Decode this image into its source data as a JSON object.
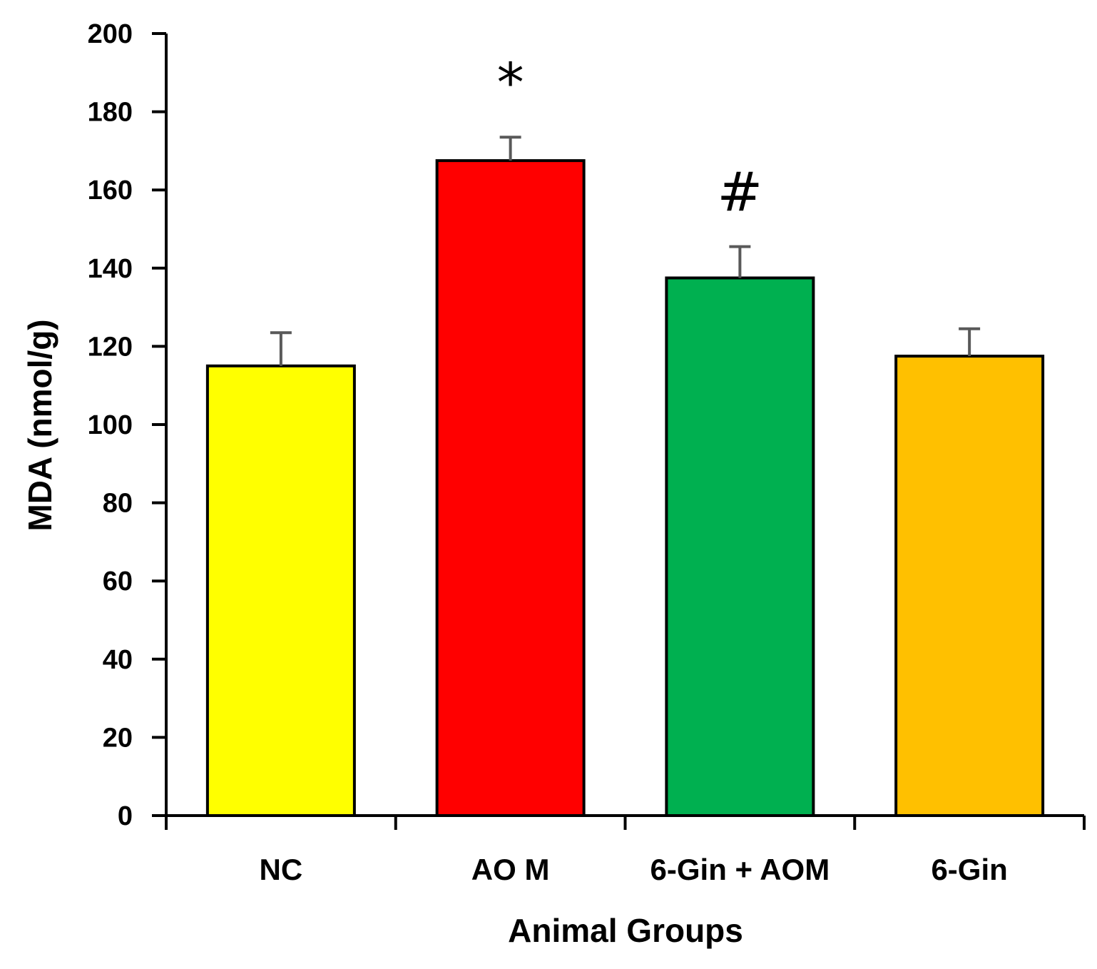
{
  "chart_data": {
    "type": "bar",
    "title": "",
    "xlabel": "Animal Groups",
    "ylabel": "MDA (nmol/g)",
    "ylim": [
      0,
      200
    ],
    "yticks": [
      0,
      20,
      40,
      60,
      80,
      100,
      120,
      140,
      160,
      180,
      200
    ],
    "ytick_labels": [
      "0",
      "20",
      "40",
      "60",
      "80",
      "100",
      "120",
      "140",
      "160",
      "180",
      "200"
    ],
    "categories": [
      "NC",
      "AO M",
      "6-Gin + AOM",
      "6-Gin"
    ],
    "values": [
      115,
      167.5,
      137.5,
      117.5
    ],
    "errors": [
      8.5,
      6,
      8,
      7
    ],
    "colors": [
      "#ffff00",
      "#ff0000",
      "#00b050",
      "#ffc000"
    ],
    "annotations": [
      "",
      "*",
      "#",
      ""
    ],
    "grid": false,
    "legend": "none"
  }
}
